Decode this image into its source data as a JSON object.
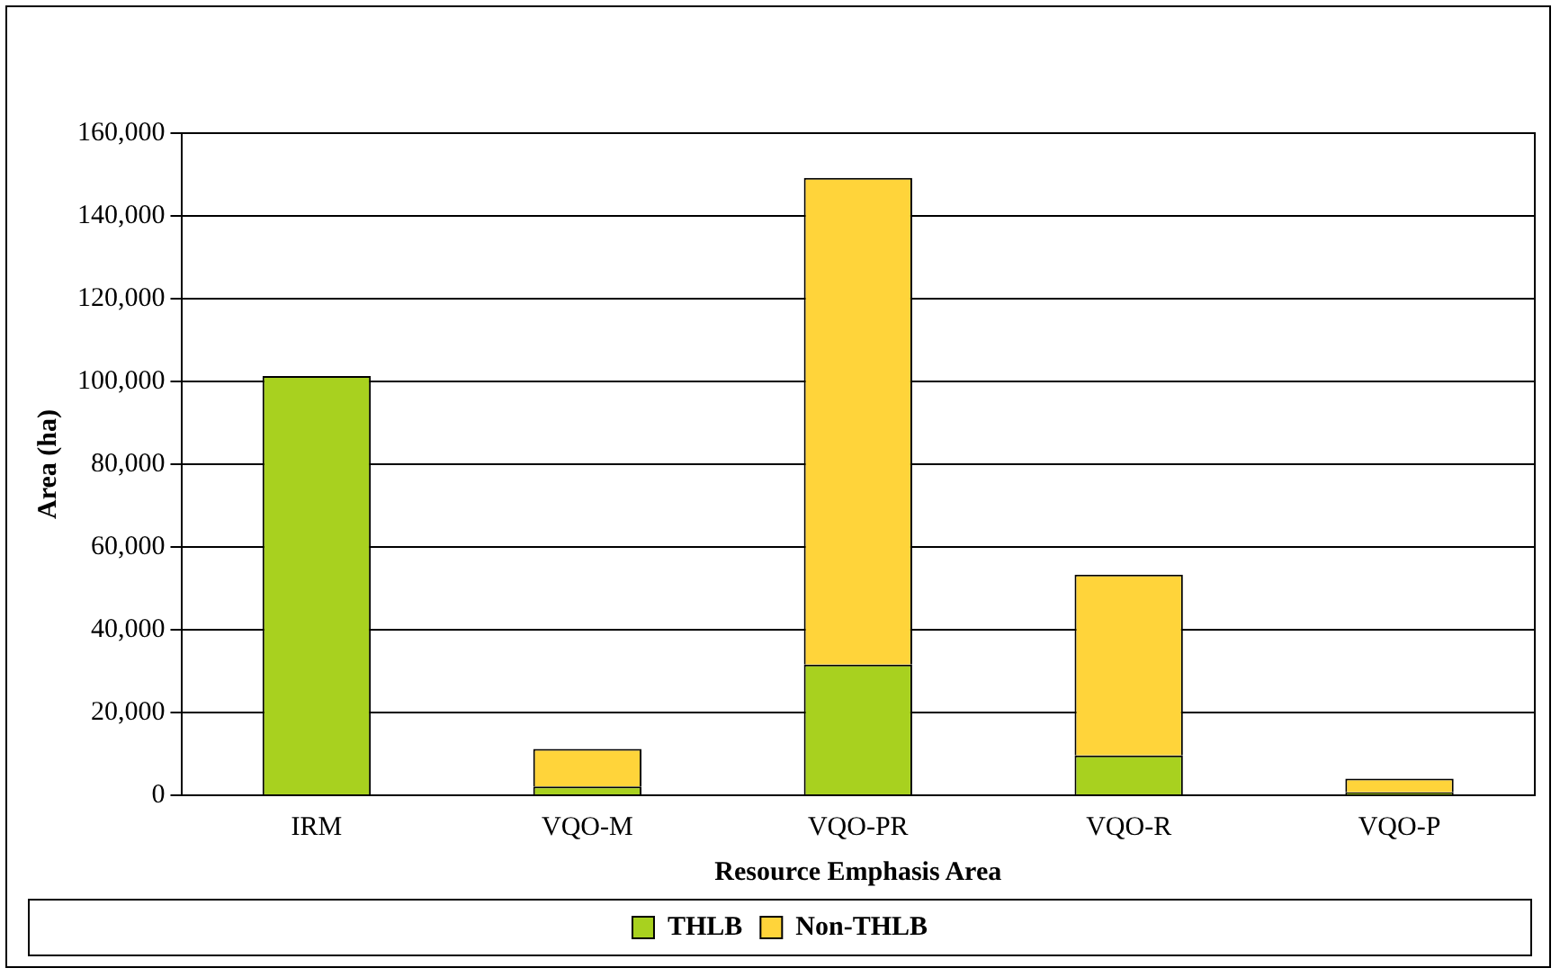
{
  "chart_data": {
    "type": "bar",
    "xlabel": "Resource Emphasis Area",
    "ylabel": "Area (ha)",
    "categories": [
      "IRM",
      "VQO-M",
      "VQO-PR",
      "VQO-R",
      "VQO-P"
    ],
    "series": [
      {
        "name": "THLB",
        "color": "#a8d11f",
        "values": [
          101300,
          2100,
          31600,
          9600,
          700
        ]
      },
      {
        "name": "Non-THLB",
        "color": "#ffd43a",
        "values": [
          null,
          9100,
          117600,
          43700,
          3300
        ]
      }
    ],
    "stacked": true,
    "ylim": [
      0,
      160000
    ],
    "yticks": [
      0,
      {
        "value": 20000,
        "label": "20,000"
      },
      {
        "value": 40000,
        "label": "40,000"
      },
      {
        "value": 60000,
        "label": "60,000"
      },
      {
        "value": 80000,
        "label": "80,000"
      },
      {
        "value": 100000,
        "label": "100,000"
      },
      {
        "value": 120000,
        "label": "120,000"
      },
      {
        "value": 140000,
        "label": "140,000"
      },
      {
        "value": 160000,
        "label": "160,000"
      }
    ],
    "grid": "y",
    "legend": "bottom"
  }
}
